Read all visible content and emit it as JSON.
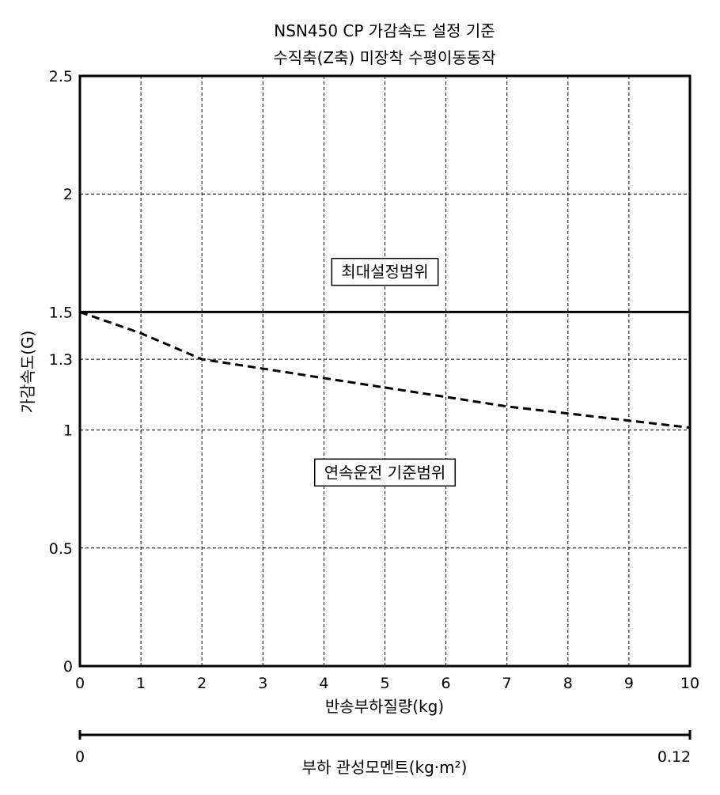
{
  "chart_data": {
    "type": "line",
    "title": [
      "NSN450 CP 가감속도 설정 기준",
      "수직축(Z축) 미장착 수평이동동작"
    ],
    "xlabel": "반송부하질량(kg)",
    "ylabel": "가감속도(G)",
    "xlim": [
      0,
      10
    ],
    "ylim": [
      0,
      2.5
    ],
    "x_ticks": [
      "0",
      "1",
      "2",
      "3",
      "4",
      "5",
      "6",
      "7",
      "8",
      "9",
      "10"
    ],
    "x_tick_values": [
      0,
      1,
      2,
      3,
      4,
      5,
      6,
      7,
      8,
      9,
      10
    ],
    "y_ticks": [
      "0",
      "0.5",
      "1",
      "1.3",
      "1.5",
      "2",
      "2.5"
    ],
    "y_tick_values": [
      0,
      0.5,
      1,
      1.3,
      1.5,
      2,
      2.5
    ],
    "grid": true,
    "series": [
      {
        "line_style": "solid",
        "x": [
          0,
          10
        ],
        "y": [
          1.5,
          1.5
        ]
      },
      {
        "line_style": "dashed",
        "x": [
          0,
          1,
          2,
          3,
          4,
          5,
          6,
          7,
          8,
          9,
          10
        ],
        "y": [
          1.5,
          1.41,
          1.3,
          1.26,
          1.22,
          1.18,
          1.14,
          1.1,
          1.07,
          1.04,
          1.01
        ]
      }
    ],
    "annotations": [
      {
        "text": "최대설정범위",
        "x": 5,
        "y": 1.67
      },
      {
        "text": "연속운전 기준범위",
        "x": 5,
        "y": 0.82
      }
    ],
    "secondary_axis": {
      "label": "부하 관성모멘트(kg·m²)",
      "range": [
        0,
        0.12
      ],
      "ticks": [
        "0",
        "0.12"
      ]
    }
  }
}
